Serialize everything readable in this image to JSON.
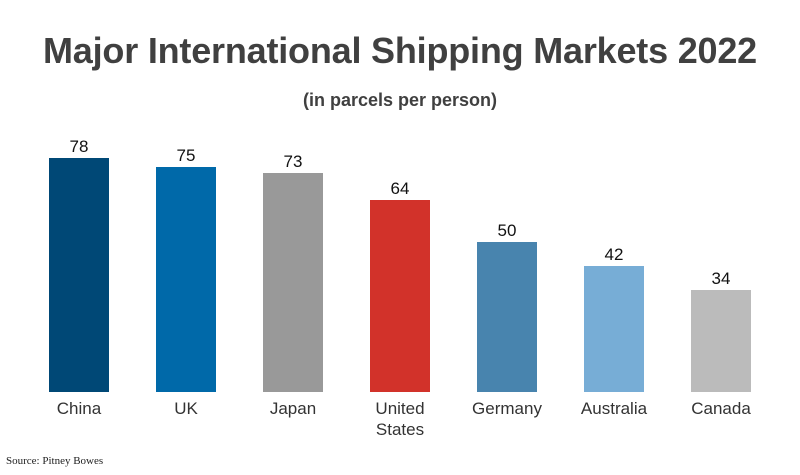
{
  "title": "Major International Shipping Markets 2022",
  "subtitle": "(in parcels per person)",
  "source": "Source: Pitney Bowes",
  "chart_data": {
    "type": "bar",
    "categories": [
      "China",
      "UK",
      "Japan",
      "United States",
      "Germany",
      "Australia",
      "Canada"
    ],
    "category_lines": [
      [
        "China"
      ],
      [
        "UK"
      ],
      [
        "Japan"
      ],
      [
        "United",
        "States"
      ],
      [
        "Germany"
      ],
      [
        "Australia"
      ],
      [
        "Canada"
      ]
    ],
    "values": [
      78,
      75,
      73,
      64,
      50,
      42,
      34
    ],
    "colors": [
      "#004876",
      "#0069A9",
      "#999999",
      "#D2322A",
      "#4884AE",
      "#77ADD6",
      "#BBBBBB"
    ],
    "title": "Major International Shipping Markets 2022",
    "subtitle": "(in parcels per person)",
    "xlabel": "",
    "ylabel": "",
    "ylim": [
      0,
      78
    ],
    "grid": false,
    "legend": "none",
    "data_labels": true
  }
}
